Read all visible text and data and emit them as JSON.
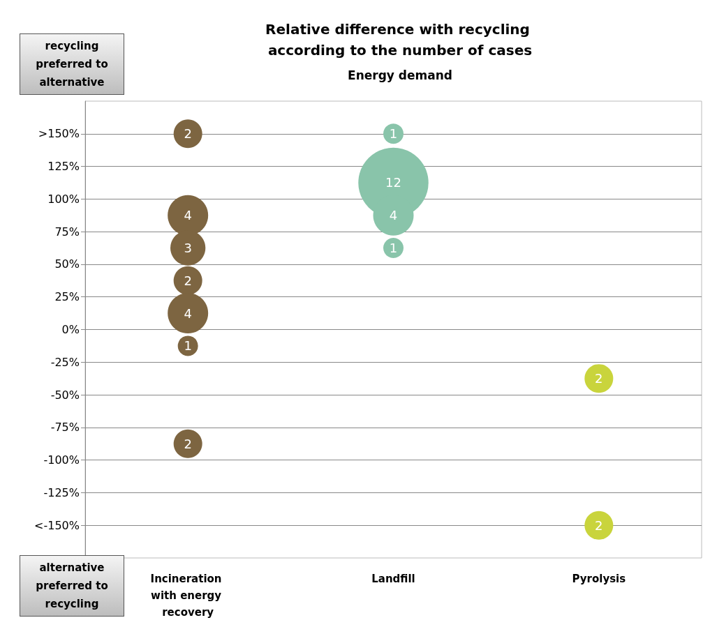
{
  "chart_data": {
    "type": "bubble",
    "title": "Relative difference with recycling according to the number of cases",
    "subtitle": "Energy demand",
    "categories": [
      "Incineration with energy recovery",
      "Landfill",
      "Pyrolysis"
    ],
    "series": [
      {
        "color": "#7d6541",
        "x": [
          "Incineration with energy recovery",
          "Incineration with energy recovery",
          "Incineration with energy recovery",
          "Incineration with energy recovery",
          "Incineration with energy recovery",
          "Incineration with energy recovery",
          "Incineration with energy recovery"
        ],
        "values": [
          150,
          87.5,
          62.5,
          37.5,
          12.5,
          -12.5,
          -87.5
        ],
        "sizes": [
          2,
          4,
          3,
          2,
          4,
          1,
          2
        ],
        "value_labels": [
          "2",
          "4",
          "3",
          "2",
          "4",
          "1",
          "2"
        ]
      },
      {
        "color": "#89c4aa",
        "x": [
          "Landfill",
          "Landfill",
          "Landfill",
          "Landfill"
        ],
        "values": [
          150,
          112.5,
          87.5,
          62.5
        ],
        "sizes": [
          1,
          12,
          4,
          1
        ],
        "value_labels": [
          "1",
          "12",
          "4",
          "1"
        ]
      },
      {
        "color": "#c9d43c",
        "x": [
          "Pyrolysis",
          "Pyrolysis"
        ],
        "values": [
          -37.5,
          -150
        ],
        "sizes": [
          2,
          2
        ],
        "value_labels": [
          "2",
          "2"
        ]
      }
    ],
    "ylim": [
      -175,
      175
    ],
    "yticks": [
      {
        "value": -150,
        "label": "<-150%"
      },
      {
        "value": -125,
        "label": "-125%"
      },
      {
        "value": -100,
        "label": "-100%"
      },
      {
        "value": -75,
        "label": "-75%"
      },
      {
        "value": -50,
        "label": "-50%"
      },
      {
        "value": -25,
        "label": "-25%"
      },
      {
        "value": 0,
        "label": "0%"
      },
      {
        "value": 25,
        "label": "25%"
      },
      {
        "value": 50,
        "label": "50%"
      },
      {
        "value": 75,
        "label": "75%"
      },
      {
        "value": 100,
        "label": "100%"
      },
      {
        "value": 125,
        "label": "125%"
      },
      {
        "value": 150,
        "label": ">150%"
      }
    ],
    "grid": "y",
    "annotations": [
      "recycling preferred to alternative",
      "alternative preferred to recycling"
    ]
  }
}
